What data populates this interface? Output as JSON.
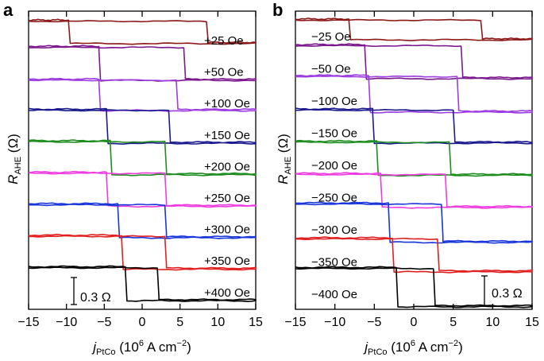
{
  "chart_data": [
    {
      "type": "line",
      "panel_label": "a",
      "xlabel_main": "j",
      "xlabel_sub": "PtCo",
      "xlabel_rest": " (10",
      "xlabel_exp": "6",
      "xlabel_units": " A cm",
      "xlabel_units_exp": "−2",
      "xlabel_close": ")",
      "ylabel_main": "R",
      "ylabel_sub": "AHE",
      "ylabel_units": " (Ω)",
      "xlim": [
        -15,
        15
      ],
      "xticks": [
        -15,
        -10,
        -5,
        0,
        5,
        10,
        15
      ],
      "xtick_labels": [
        "−15",
        "−10",
        "−5",
        "0",
        "5",
        "10",
        "15"
      ],
      "scale_bar_label": "0.3 Ω",
      "scale_bar_value_ohm": 0.3,
      "series": [
        {
          "name": "+25 Oe",
          "color": "#8b1a1a",
          "switch_down": -9.5,
          "switch_up": 8.5,
          "step_ohm": 0.08
        },
        {
          "name": "+50 Oe",
          "color": "#7b1a8c",
          "switch_down": -5.5,
          "switch_up": 5.5,
          "step_ohm": 0.12
        },
        {
          "name": "+100 Oe",
          "color": "#9b3de0",
          "switch_down": -5.5,
          "switch_up": 4.5,
          "step_ohm": 0.11
        },
        {
          "name": "+150 Oe",
          "color": "#1a1a8c",
          "switch_down": -4.5,
          "switch_up": 3.5,
          "step_ohm": 0.12
        },
        {
          "name": "+200 Oe",
          "color": "#1e8c1e",
          "switch_down": -4,
          "switch_up": 3,
          "step_ohm": 0.12
        },
        {
          "name": "+250 Oe",
          "color": "#ee3ddf",
          "switch_down": -4.5,
          "switch_up": 3,
          "step_ohm": 0.12
        },
        {
          "name": "+300 Oe",
          "color": "#1a35d8",
          "switch_down": -3,
          "switch_up": 3,
          "step_ohm": 0.12
        },
        {
          "name": "+350 Oe",
          "color": "#e02020",
          "switch_down": -2.5,
          "switch_up": 3,
          "step_ohm": 0.12
        },
        {
          "name": "+400 Oe",
          "color": "#000000",
          "switch_down": -2,
          "switch_up": 2,
          "step_ohm": 0.12
        }
      ]
    },
    {
      "type": "line",
      "panel_label": "b",
      "xlabel_main": "j",
      "xlabel_sub": "PtCo",
      "xlabel_rest": " (10",
      "xlabel_exp": "6",
      "xlabel_units": " A cm",
      "xlabel_units_exp": "−2",
      "xlabel_close": ")",
      "ylabel_main": "R",
      "ylabel_sub": "AHE",
      "ylabel_units": " (Ω)",
      "xlim": [
        -15,
        15
      ],
      "xticks": [
        -15,
        -10,
        -5,
        0,
        5,
        10,
        15
      ],
      "xtick_labels": [
        "−15",
        "−10",
        "−5",
        "0",
        "5",
        "10",
        "15"
      ],
      "scale_bar_label": "0.3 Ω",
      "scale_bar_value_ohm": 0.3,
      "series": [
        {
          "name": "−25 Oe",
          "color": "#8b1a1a",
          "switch_down": -8,
          "switch_up": 8.5,
          "step_ohm": 0.07
        },
        {
          "name": "−50 Oe",
          "color": "#7b1a8c",
          "switch_down": -6,
          "switch_up": 6,
          "step_ohm": 0.12
        },
        {
          "name": "−100 Oe",
          "color": "#9b3de0",
          "switch_down": -5.5,
          "switch_up": 5.5,
          "step_ohm": 0.13
        },
        {
          "name": "−150 Oe",
          "color": "#1a1a8c",
          "switch_down": -5,
          "switch_up": 5,
          "step_ohm": 0.12
        },
        {
          "name": "−200 Oe",
          "color": "#1e8c1e",
          "switch_down": -4.5,
          "switch_up": 4.5,
          "step_ohm": 0.12
        },
        {
          "name": "−250 Oe",
          "color": "#ee3ddf",
          "switch_down": -4,
          "switch_up": 4,
          "step_ohm": 0.12
        },
        {
          "name": "−300 Oe",
          "color": "#1a35d8",
          "switch_down": -3,
          "switch_up": 3.5,
          "step_ohm": 0.14
        },
        {
          "name": "−350 Oe",
          "color": "#e02020",
          "switch_down": -2.5,
          "switch_up": 3,
          "step_ohm": 0.12
        },
        {
          "name": "−400 Oe",
          "color": "#000000",
          "switch_down": -2,
          "switch_up": 2.5,
          "step_ohm": 0.14
        }
      ]
    }
  ]
}
